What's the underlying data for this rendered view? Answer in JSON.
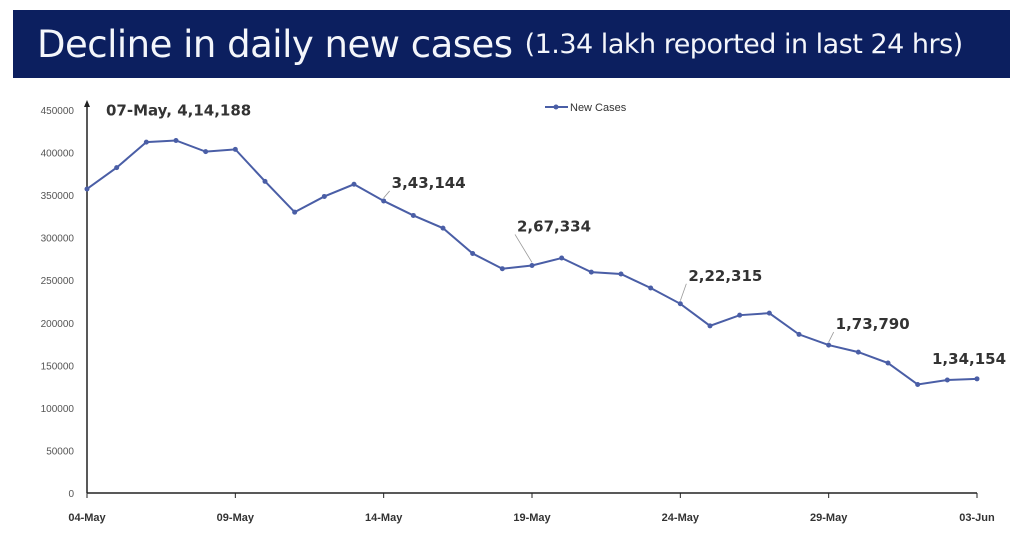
{
  "header": {
    "title": "Decline in daily new cases",
    "subtitle": "(1.34 lakh reported in last 24 hrs)"
  },
  "colors": {
    "header_bg": "#0c1f5f",
    "line": "#4a5ea6"
  },
  "chart_data": {
    "type": "line",
    "title": "Decline in daily new cases (1.34 lakh reported in last 24 hrs)",
    "xlabel": "",
    "ylabel": "",
    "ylim": [
      0,
      450000
    ],
    "yticks": [
      "0",
      "50000",
      "100000",
      "150000",
      "200000",
      "250000",
      "300000",
      "350000",
      "400000",
      "450000"
    ],
    "xticks": [
      "04-May",
      "09-May",
      "14-May",
      "19-May",
      "24-May",
      "29-May",
      "03-Jun"
    ],
    "grid": false,
    "legend_position": "top-center",
    "x": [
      "04-May",
      "05-May",
      "06-May",
      "07-May",
      "08-May",
      "09-May",
      "10-May",
      "11-May",
      "12-May",
      "13-May",
      "14-May",
      "15-May",
      "16-May",
      "17-May",
      "18-May",
      "19-May",
      "20-May",
      "21-May",
      "22-May",
      "23-May",
      "24-May",
      "25-May",
      "26-May",
      "27-May",
      "28-May",
      "29-May",
      "30-May",
      "31-May",
      "01-Jun",
      "02-Jun",
      "03-Jun"
    ],
    "series": [
      {
        "name": "New Cases",
        "values": [
          357229,
          382315,
          412262,
          414188,
          401078,
          403738,
          366161,
          329942,
          348421,
          362727,
          343144,
          326098,
          311170,
          281386,
          263533,
          267334,
          276110,
          259551,
          257299,
          240842,
          222315,
          196427,
          208921,
          211298,
          186364,
          173790,
          165553,
          152734,
          127510,
          132788,
          134154
        ]
      }
    ],
    "annotations": [
      {
        "index": 3,
        "text": "07-May, 4,14,188"
      },
      {
        "index": 10,
        "text": "3,43,144"
      },
      {
        "index": 15,
        "text": "2,67,334"
      },
      {
        "index": 20,
        "text": "2,22,315"
      },
      {
        "index": 25,
        "text": "1,73,790"
      },
      {
        "index": 30,
        "text": "1,34,154"
      }
    ]
  }
}
